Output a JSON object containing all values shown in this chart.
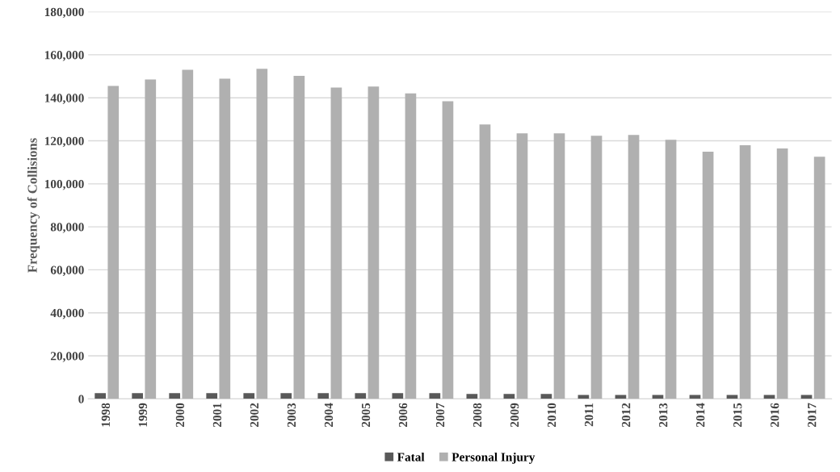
{
  "chart_data": {
    "type": "bar",
    "ylabel": "Frequency of Collisions",
    "categories": [
      "1998",
      "1999",
      "2000",
      "2001",
      "2002",
      "2003",
      "2004",
      "2005",
      "2006",
      "2007",
      "2008",
      "2009",
      "2010",
      "2011",
      "2012",
      "2013",
      "2014",
      "2015",
      "2016",
      "2017"
    ],
    "series": [
      {
        "name": "Fatal",
        "color": "#595959",
        "values": [
          2700,
          2700,
          2700,
          2700,
          2700,
          2700,
          2700,
          2700,
          2700,
          2700,
          2300,
          2300,
          2300,
          1800,
          1800,
          1800,
          1800,
          1800,
          1800,
          1800
        ]
      },
      {
        "name": "Personal Injury",
        "color": "#b0b0b0",
        "values": [
          145500,
          148500,
          153000,
          148900,
          153500,
          150200,
          144800,
          145200,
          142100,
          138400,
          127600,
          123500,
          123500,
          122400,
          122700,
          120500,
          114900,
          117900,
          116400,
          112600
        ]
      }
    ],
    "ylim": [
      0,
      180000
    ],
    "yticks": [
      {
        "value": 0,
        "label": "0"
      },
      {
        "value": 20000,
        "label": "20,000"
      },
      {
        "value": 40000,
        "label": "40,000"
      },
      {
        "value": 60000,
        "label": "60,000"
      },
      {
        "value": 80000,
        "label": "80,000"
      },
      {
        "value": 100000,
        "label": "100,000"
      },
      {
        "value": 120000,
        "label": "120,000"
      },
      {
        "value": 140000,
        "label": "140,000"
      },
      {
        "value": 160000,
        "label": "160,000"
      },
      {
        "value": 180000,
        "label": "180,000"
      }
    ],
    "grid": "y",
    "legend": "bottom"
  }
}
